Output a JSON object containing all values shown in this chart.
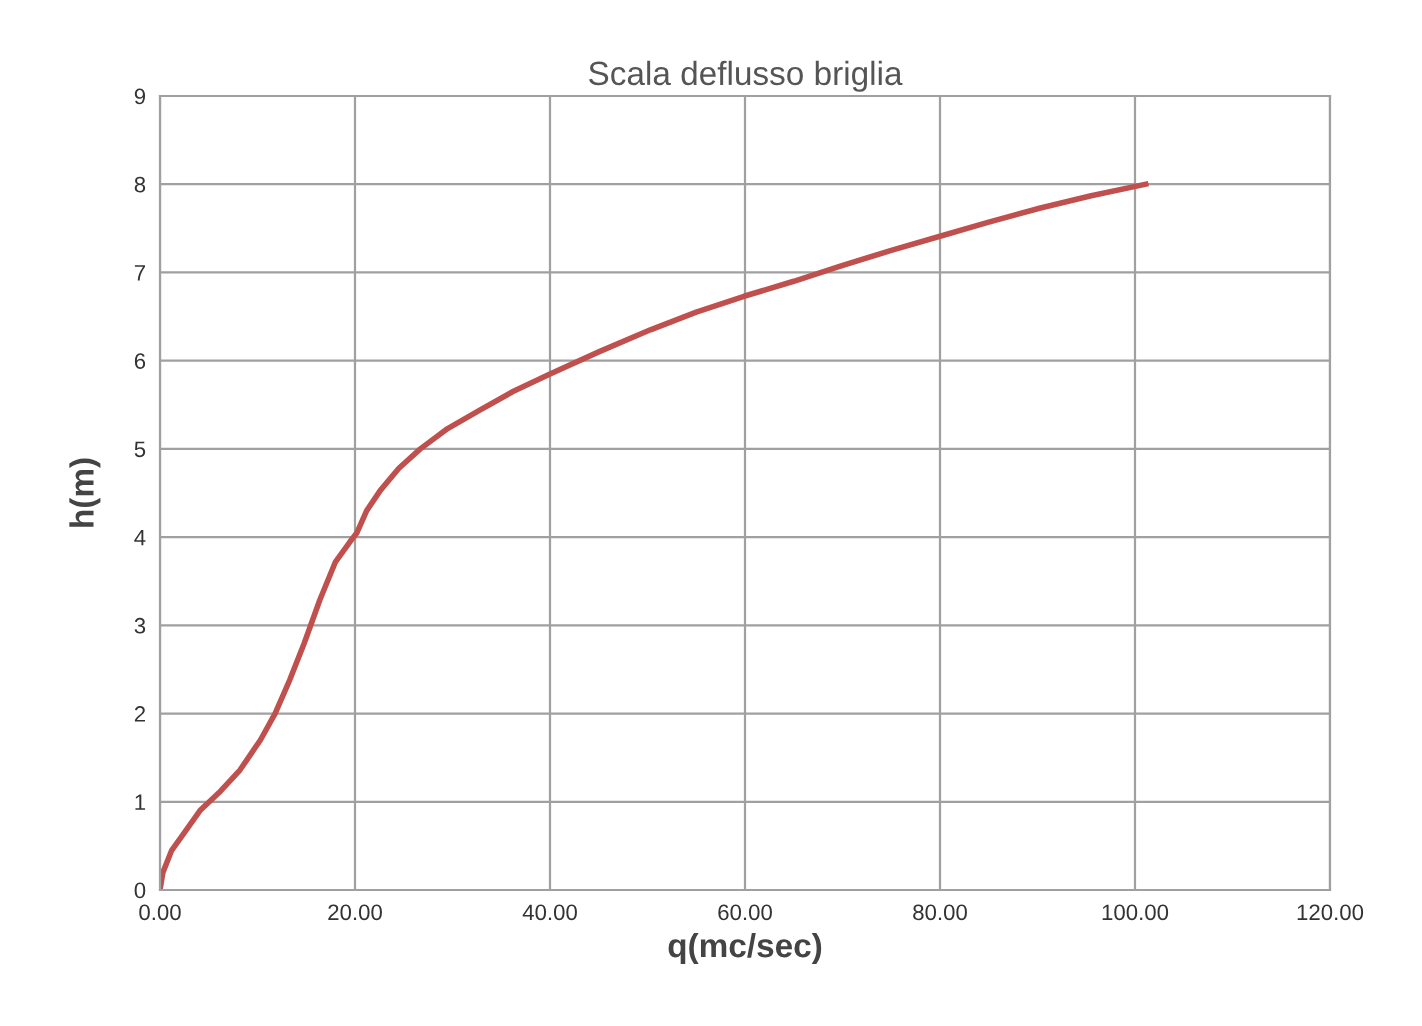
{
  "chart_data": {
    "type": "line",
    "title": "Scala deflusso briglia",
    "xlabel": "q(mc/sec)",
    "ylabel": "h(m)",
    "series": [
      {
        "color": "#c0504d",
        "x": [
          0,
          0.3,
          1.2,
          2.5,
          4.1,
          6.2,
          8.2,
          10.3,
          11.8,
          13.3,
          14.8,
          16.4,
          18,
          19.5,
          20.2,
          21.2,
          22.6,
          24.5,
          26.7,
          29.5,
          32.8,
          36.2,
          40,
          45,
          50.3,
          55,
          59.9,
          65,
          69.7,
          75,
          80,
          85,
          90.3,
          95.5,
          101.1
        ],
        "values": [
          0,
          0.2,
          0.45,
          0.65,
          0.9,
          1.12,
          1.36,
          1.7,
          2.0,
          2.38,
          2.8,
          3.29,
          3.72,
          3.95,
          4.05,
          4.3,
          4.53,
          4.78,
          5.0,
          5.23,
          5.44,
          5.65,
          5.85,
          6.1,
          6.35,
          6.55,
          6.73,
          6.9,
          7.07,
          7.25,
          7.41,
          7.57,
          7.73,
          7.87,
          8.0
        ]
      }
    ],
    "xlim": [
      0,
      120
    ],
    "ylim": [
      0,
      9
    ],
    "xticks": [
      {
        "value": 0,
        "label": "0.00"
      },
      {
        "value": 20,
        "label": "20.00"
      },
      {
        "value": 40,
        "label": "40.00"
      },
      {
        "value": 60,
        "label": "60.00"
      },
      {
        "value": 80,
        "label": "80.00"
      },
      {
        "value": 100,
        "label": "100.00"
      },
      {
        "value": 120,
        "label": "120.00"
      }
    ],
    "yticks": [
      0,
      1,
      2,
      3,
      4,
      5,
      6,
      7,
      8,
      9
    ],
    "grid": true,
    "marker": "none",
    "line_style": "solid"
  }
}
